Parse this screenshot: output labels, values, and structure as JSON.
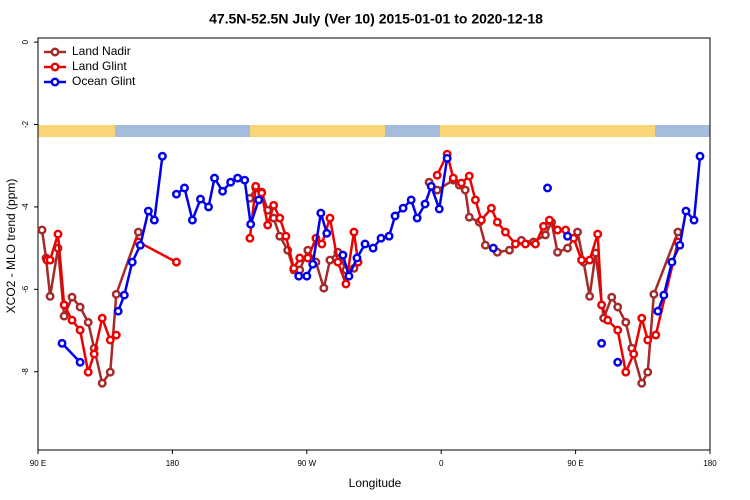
{
  "chart_data": {
    "type": "line",
    "title": "47.5N-52.5N July (Ver 10)   2015-01-01 to 2020-12-18",
    "x_label": "Longitude",
    "y_label": "XCO2 - MLO trend (ppm)",
    "xlim": [
      90,
      540
    ],
    "xticks": [
      {
        "value": 90,
        "label": "90 E"
      },
      180,
      {
        "value": 270,
        "label": "90 W"
      },
      {
        "value": 360,
        "label": "0"
      },
      {
        "value": 450,
        "label": "90 E"
      },
      {
        "value": 540,
        "label": "180"
      }
    ],
    "ylim": [
      -9.9,
      0.1
    ],
    "yticks": [
      0,
      -2,
      -4,
      -6,
      -8
    ],
    "grid": false,
    "legend": "top-left",
    "series": [
      {
        "name": "Land Nadir",
        "color": "#a52a2a",
        "x": [
          92.7,
          95.4,
          98.1,
          103.4,
          107.5,
          112.8,
          118.2,
          123.6,
          127.6,
          133.0,
          138.4,
          142.4,
          157.2,
          null,
          231.9,
          235.8,
          239.8,
          243.8,
          247.8,
          251.9,
          257.2,
          261.3,
          265.3,
          270.7,
          276.1,
          281.4,
          285.5,
          290.8,
          296.2,
          301.6,
          null,
          351.9,
          357.3,
          368.1,
          372.1,
          376.1,
          378.8,
          385.5,
          389.6,
          397.6,
          405.7,
          413.7,
          421.8,
          429.8,
          433.9,
          437.9,
          444.6,
          451.3,
          455.4,
          459.4,
          463.4,
          468.8,
          474.2,
          478.2,
          483.6,
          487.6,
          494.3,
          498.3,
          502.4,
          518.5
        ],
        "values": [
          -4.56,
          -5.24,
          -6.17,
          -5.0,
          -6.65,
          -6.19,
          -6.43,
          -6.8,
          -7.43,
          -8.28,
          -8.01,
          -6.12,
          -4.61,
          null,
          -3.79,
          -3.54,
          -3.64,
          -4.08,
          -4.27,
          -4.71,
          -5.05,
          -5.53,
          -5.53,
          -5.05,
          -5.34,
          -5.97,
          -5.29,
          -5.1,
          -5.53,
          -5.49,
          null,
          -3.4,
          -3.59,
          -3.35,
          -3.47,
          -3.59,
          -4.25,
          -4.37,
          -4.93,
          -5.1,
          -5.05,
          -4.81,
          -4.85,
          -4.68,
          -4.37,
          -5.1,
          -5.0,
          -4.61,
          -5.34,
          -6.17,
          -5.12,
          -6.7,
          -6.19,
          -6.43,
          -6.8,
          -7.43,
          -8.28,
          -8.01,
          -6.12,
          -4.61
        ]
      },
      {
        "name": "Land Glint",
        "color": "#ee0000",
        "x": [
          96.0,
          98.1,
          103.4,
          107.5,
          112.8,
          118.2,
          123.6,
          127.6,
          133.0,
          138.4,
          142.4,
          null,
          157.2,
          182.7,
          null,
          231.9,
          235.8,
          239.8,
          243.8,
          247.8,
          251.9,
          256.0,
          261.3,
          265.3,
          270.7,
          276.1,
          280.1,
          285.5,
          290.8,
          296.2,
          301.6,
          304.3,
          null,
          357.3,
          364.0,
          368.1,
          373.5,
          378.8,
          382.9,
          386.9,
          393.6,
          397.6,
          403.0,
          409.7,
          416.4,
          423.1,
          428.5,
          432.5,
          437.9,
          443.3,
          448.7,
          454.0,
          459.4,
          464.8,
          467.4,
          471.5,
          478.2,
          483.6,
          488.9,
          494.3,
          498.3,
          503.7,
          518.5
        ],
        "values": [
          -5.29,
          -5.29,
          -4.66,
          -6.38,
          -6.75,
          -6.99,
          -8.01,
          -7.57,
          -6.7,
          -7.23,
          -7.11,
          null,
          -4.85,
          -5.34,
          null,
          -4.76,
          -3.5,
          -3.66,
          -4.44,
          -3.96,
          -4.27,
          -4.71,
          -5.49,
          -5.24,
          -5.24,
          -4.76,
          -4.9,
          -4.27,
          -5.34,
          -5.87,
          -4.61,
          -5.34,
          null,
          -3.23,
          -2.72,
          -3.3,
          -3.42,
          -3.25,
          -3.83,
          -4.32,
          -4.03,
          -4.37,
          -4.61,
          -4.9,
          -4.9,
          -4.9,
          -4.47,
          -4.32,
          -4.56,
          -4.56,
          -4.76,
          -5.29,
          -5.29,
          -4.66,
          -6.38,
          -6.75,
          -6.99,
          -8.01,
          -7.57,
          -6.7,
          -7.23,
          -7.11,
          -4.85
        ]
      },
      {
        "name": "Ocean Glint",
        "color": "#0000ee",
        "x": [
          106.1,
          118.2,
          null,
          143.7,
          147.8,
          153.1,
          158.5,
          163.9,
          167.9,
          173.3,
          null,
          182.7,
          188.1,
          193.4,
          198.8,
          204.2,
          208.2,
          213.6,
          219.0,
          223.7,
          228.4,
          232.4,
          237.8,
          null,
          264.6,
          270.0,
          274.0,
          279.4,
          283.4,
          null,
          294.2,
          298.2,
          303.6,
          309.0,
          314.4,
          319.7,
          325.1,
          329.1,
          334.5,
          339.9,
          343.9,
          349.2,
          353.3,
          358.7,
          364.0,
          null,
          394.9,
          null,
          431.2,
          null,
          444.6,
          null,
          467.4,
          null,
          478.2,
          null,
          505.1,
          509.1,
          514.5,
          519.8,
          523.9,
          529.3,
          533.3
        ],
        "values": [
          -7.31,
          -7.77,
          null,
          -6.53,
          -6.14,
          -5.34,
          -4.93,
          -4.1,
          -4.32,
          -2.77,
          null,
          -3.69,
          -3.54,
          -4.32,
          -3.81,
          -4.0,
          -3.3,
          -3.62,
          -3.4,
          -3.3,
          -3.35,
          -4.42,
          -3.83,
          null,
          -5.68,
          -5.68,
          -5.39,
          -4.15,
          -4.64,
          null,
          -5.17,
          -5.68,
          -5.24,
          -4.9,
          -5.0,
          -4.76,
          -4.71,
          -4.22,
          -4.03,
          -3.83,
          -4.27,
          -3.93,
          -3.5,
          -4.05,
          -2.82,
          null,
          -5.0,
          null,
          -3.54,
          null,
          -4.71,
          null,
          -7.31,
          null,
          -7.77,
          null,
          -6.53,
          -6.14,
          -5.34,
          -4.93,
          -4.1,
          -4.32,
          -2.77
        ]
      }
    ]
  }
}
